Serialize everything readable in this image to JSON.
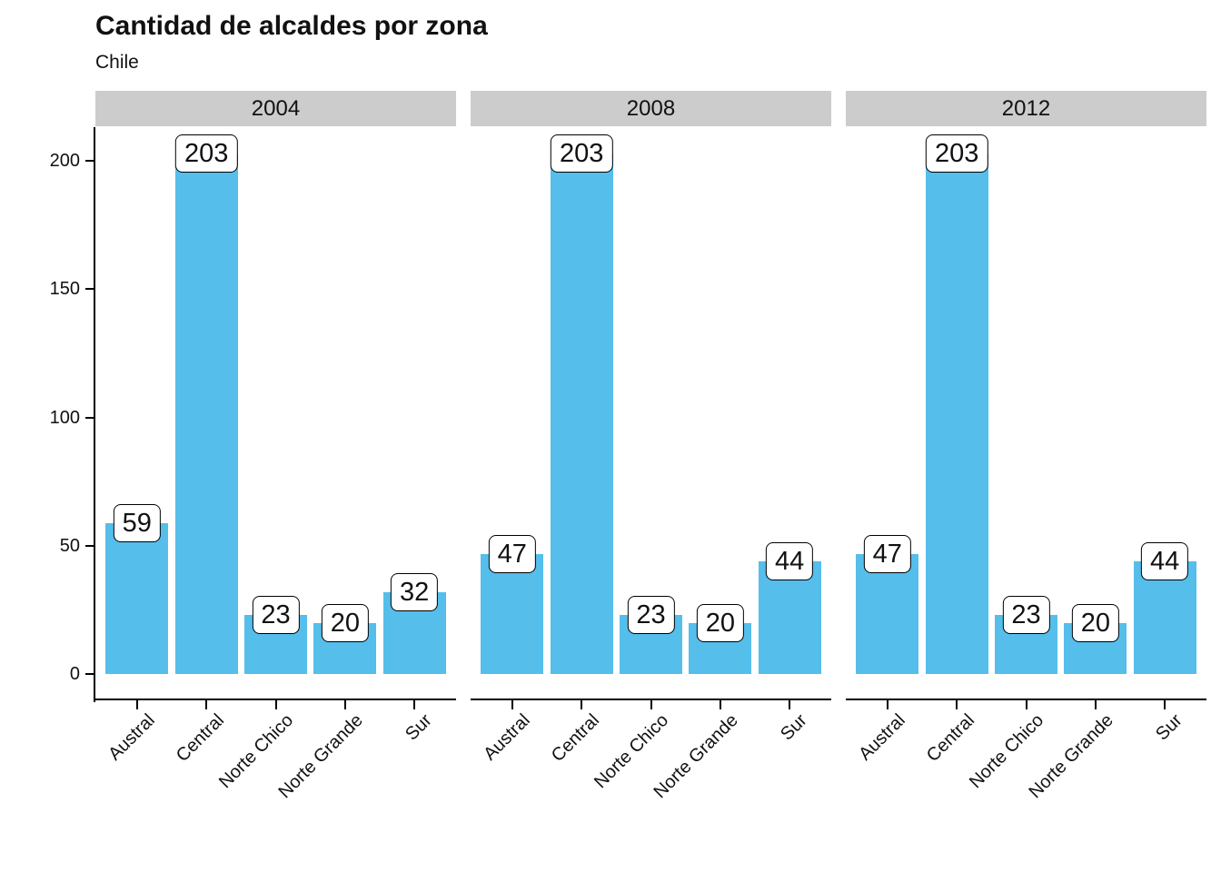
{
  "title": "Cantidad de alcaldes por zona",
  "subtitle": "Chile",
  "chart_data": {
    "type": "bar",
    "title": "Cantidad de alcaldes por zona",
    "subtitle": "Chile",
    "faceted_by": "year",
    "facets": [
      "2004",
      "2008",
      "2012"
    ],
    "categories": [
      "Austral",
      "Central",
      "Norte Chico",
      "Norte Grande",
      "Sur"
    ],
    "series": [
      {
        "name": "2004",
        "values": [
          59,
          203,
          23,
          20,
          32
        ]
      },
      {
        "name": "2008",
        "values": [
          47,
          203,
          23,
          20,
          44
        ]
      },
      {
        "name": "2012",
        "values": [
          47,
          203,
          23,
          20,
          44
        ]
      }
    ],
    "xlabel": "",
    "ylabel": "",
    "y_ticks": [
      0,
      50,
      100,
      150,
      200
    ],
    "ylim": [
      -10.15,
      213.15
    ],
    "value_labels": true,
    "value_label_style": "white rounded box, black border, centered on bar top",
    "grid": false,
    "legend": false,
    "x_tick_label_angle": 45,
    "bar_color": "#55BEEB",
    "strip_color": "#CCCCCC",
    "axis_color": "#000000",
    "text_color": "#111111"
  }
}
